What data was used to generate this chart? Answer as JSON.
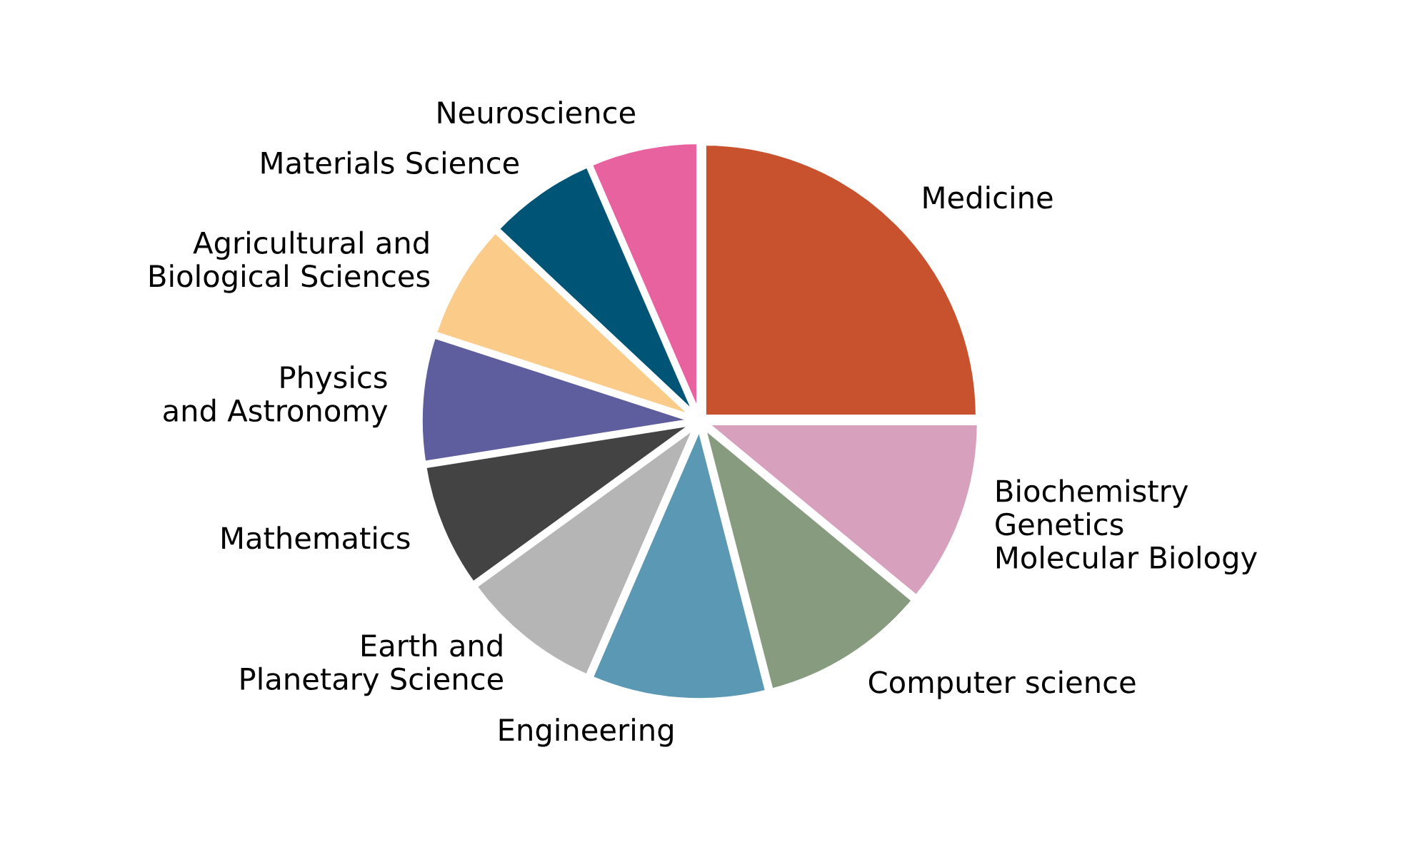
{
  "chart_data": {
    "type": "pie",
    "categories": [
      "Medicine",
      "Biochemistry\nGenetics\nMolecular Biology",
      "Computer science",
      "Engineering",
      "Earth and\nPlanetary Science",
      "Mathematics",
      "Physics\nand Astronomy",
      "Agricultural and\nBiological Sciences",
      "Materials Science",
      "Neuroscience"
    ],
    "values": [
      25,
      11,
      10,
      10.5,
      8.5,
      7.5,
      7.5,
      7,
      6.5,
      6.5
    ],
    "colors": [
      "#c8522e",
      "#d7a1be",
      "#879b7e",
      "#5b98b4",
      "#b5b5b5",
      "#434343",
      "#5e5e9e",
      "#fbcb8a",
      "#005476",
      "#e862a0"
    ],
    "legend": false
  }
}
